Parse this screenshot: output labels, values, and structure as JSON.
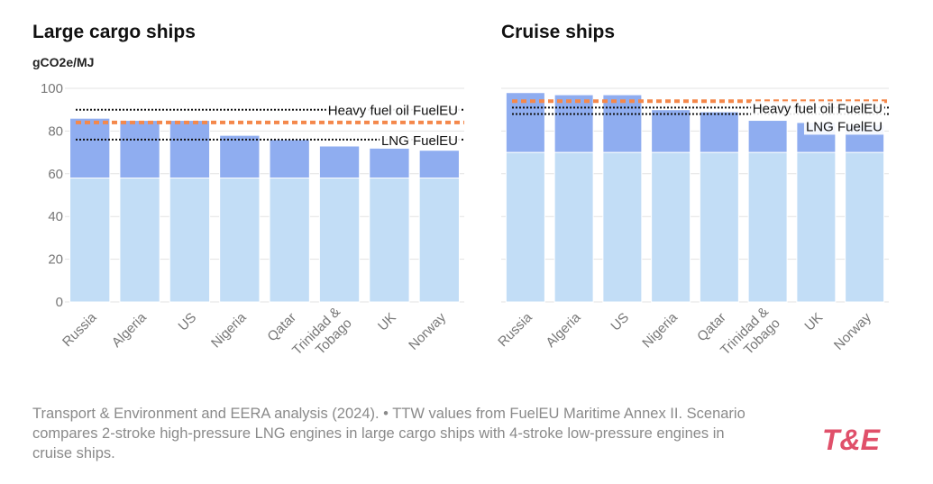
{
  "chart_data": [
    {
      "type": "bar",
      "stacked": true,
      "title": "Large cargo ships",
      "ylabel": "gCO2e/MJ",
      "categories": [
        "Russia",
        "Algeria",
        "US",
        "Nigeria",
        "Qatar",
        "Trinidad & Tobago",
        "UK",
        "Norway"
      ],
      "series": [
        {
          "color": "#c2ddf6",
          "values": [
            58,
            58,
            58,
            58,
            58,
            58,
            58,
            58
          ]
        },
        {
          "color": "#8fadf0",
          "values": [
            28,
            27,
            27,
            20,
            18,
            15,
            14,
            13
          ]
        }
      ],
      "reference_lines": [
        {
          "label": "Heavy fuel oil FuelEU",
          "value": 90,
          "style": "dotted",
          "color": "#111111"
        },
        {
          "label": "LNG FuelEU",
          "value": 76,
          "style": "dotted",
          "color": "#111111"
        },
        {
          "value": 84,
          "style": "dashed",
          "color": "#f4884b"
        }
      ],
      "ylim": [
        0,
        100
      ],
      "yticks": [
        0,
        20,
        40,
        60,
        80,
        100
      ],
      "grid": true,
      "tick_labels": true
    },
    {
      "type": "bar",
      "stacked": true,
      "title": "Cruise ships",
      "categories": [
        "Russia",
        "Algeria",
        "US",
        "Nigeria",
        "Qatar",
        "Trinidad & Tobago",
        "UK",
        "Norway"
      ],
      "series": [
        {
          "color": "#c2ddf6",
          "values": [
            70,
            70,
            70,
            70,
            70,
            70,
            70,
            70
          ]
        },
        {
          "color": "#8fadf0",
          "values": [
            28,
            27,
            27,
            20,
            19,
            15,
            14,
            13
          ]
        }
      ],
      "reference_lines": [
        {
          "label": "Heavy fuel oil FuelEU",
          "value": 91,
          "style": "dotted",
          "color": "#111111"
        },
        {
          "label": "LNG FuelEU",
          "value": 88,
          "style": "dotted",
          "color": "#111111"
        },
        {
          "value": 94,
          "style": "dashed",
          "color": "#f4884b"
        }
      ],
      "ylim": [
        0,
        100
      ],
      "yticks": [
        0,
        20,
        40,
        60,
        80,
        100
      ],
      "grid": true,
      "tick_labels": false
    }
  ],
  "source": "Transport & Environment and EERA analysis (2024). • TTW values from FuelEU Maritime Annex II. Scenario compares 2-stroke high-pressure LNG engines in large cargo ships with 4-stroke low-pressure engines in cruise ships.",
  "logo": "T&E"
}
